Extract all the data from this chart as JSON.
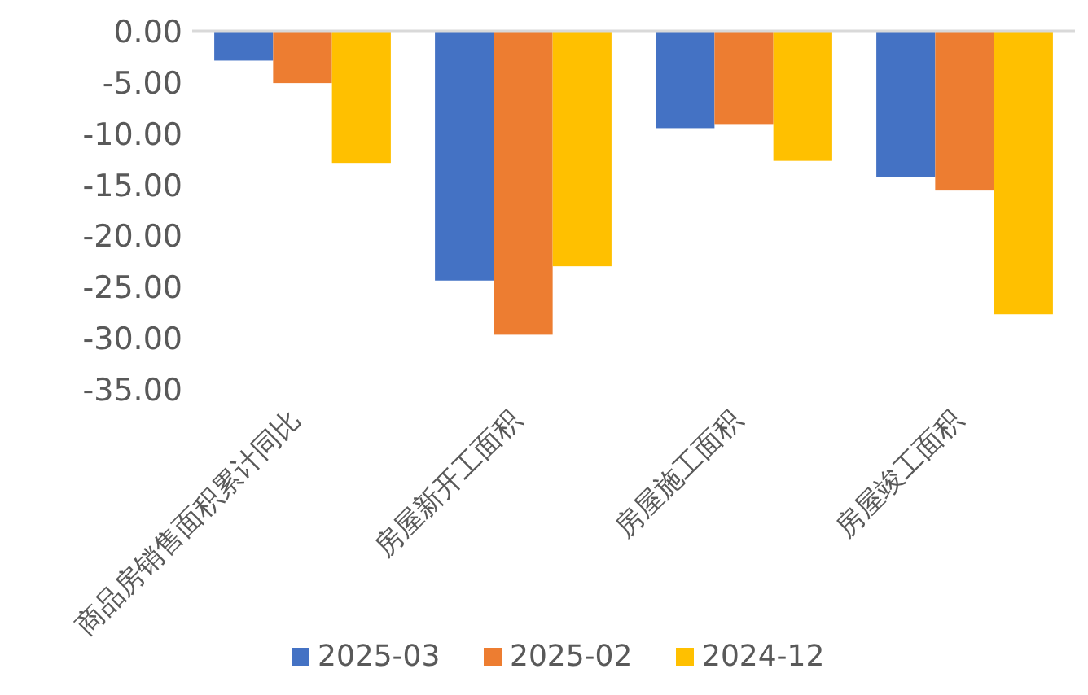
{
  "chart_data": {
    "type": "bar",
    "categories": [
      "商品房销售面积累计同比",
      "房屋新开工面积",
      "房屋施工面积",
      "房屋竣工面积"
    ],
    "series": [
      {
        "name": "2025-03",
        "color": "#4472c4",
        "values": [
          -2.9,
          -24.4,
          -9.5,
          -14.3
        ]
      },
      {
        "name": "2025-02",
        "color": "#ed7d31",
        "values": [
          -5.1,
          -29.7,
          -9.1,
          -15.6
        ]
      },
      {
        "name": "2024-12",
        "color": "#ffc000",
        "values": [
          -12.9,
          -23.0,
          -12.7,
          -27.7
        ]
      }
    ],
    "ylim": [
      -35,
      0
    ],
    "yticks": [
      {
        "value": 0,
        "label": "0.00"
      },
      {
        "value": -5,
        "label": "-5.00"
      },
      {
        "value": -10,
        "label": "-10.00"
      },
      {
        "value": -15,
        "label": "-15.00"
      },
      {
        "value": -20,
        "label": "-20.00"
      },
      {
        "value": -25,
        "label": "-25.00"
      },
      {
        "value": -30,
        "label": "-30.00"
      },
      {
        "value": -35,
        "label": "-35.00"
      }
    ],
    "grid": false,
    "legend": "bottom"
  }
}
